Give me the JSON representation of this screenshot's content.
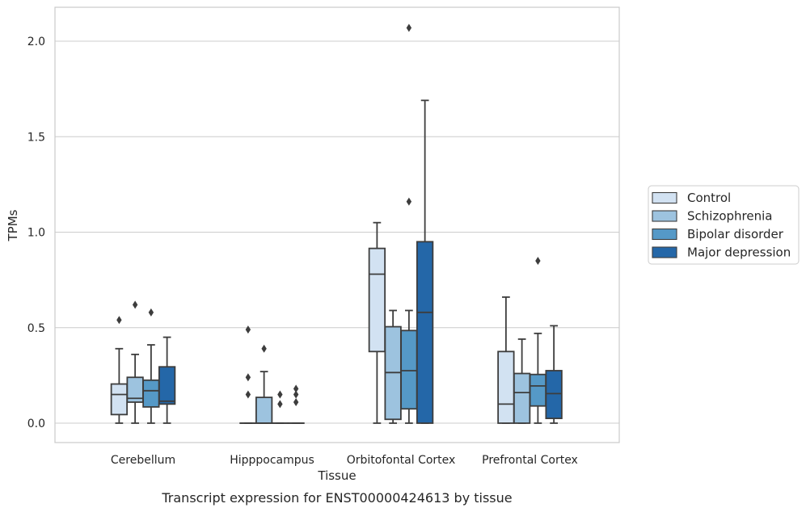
{
  "caption": "Transcript expression for ENST00000424613 by tissue",
  "chart_data": {
    "type": "box",
    "xlabel": "Tissue",
    "ylabel": "TPMs",
    "ylim": [
      -0.1,
      2.18
    ],
    "yticks": [
      0.0,
      0.5,
      1.0,
      1.5,
      2.0
    ],
    "ytick_labels": [
      "0.0",
      "0.5",
      "1.0",
      "1.5",
      "2.0"
    ],
    "grid": "horizontal",
    "legend_position": "right",
    "categories": [
      "Cerebellum",
      "Hipppocampus",
      "Orbitofontal Cortex",
      "Prefrontal Cortex"
    ],
    "series": [
      {
        "name": "Control",
        "color": "#d2e2f2",
        "boxes": [
          {
            "whislo": 0.0,
            "q1": 0.045,
            "med": 0.15,
            "q3": 0.205,
            "whishi": 0.39,
            "fliers": [
              0.54
            ]
          },
          {
            "whislo": 0.0,
            "q1": 0.0,
            "med": 0.0,
            "q3": 0.0,
            "whishi": 0.0,
            "fliers": [
              0.15,
              0.24,
              0.49
            ]
          },
          {
            "whislo": 0.0,
            "q1": 0.375,
            "med": 0.78,
            "q3": 0.915,
            "whishi": 1.05,
            "fliers": []
          },
          {
            "whislo": 0.0,
            "q1": 0.0,
            "med": 0.1,
            "q3": 0.375,
            "whishi": 0.66,
            "fliers": []
          }
        ]
      },
      {
        "name": "Schizophrenia",
        "color": "#9dc3df",
        "boxes": [
          {
            "whislo": 0.0,
            "q1": 0.11,
            "med": 0.13,
            "q3": 0.24,
            "whishi": 0.36,
            "fliers": [
              0.62
            ]
          },
          {
            "whislo": 0.0,
            "q1": 0.0,
            "med": 0.0,
            "q3": 0.135,
            "whishi": 0.27,
            "fliers": [
              0.39
            ]
          },
          {
            "whislo": 0.0,
            "q1": 0.02,
            "med": 0.265,
            "q3": 0.505,
            "whishi": 0.59,
            "fliers": []
          },
          {
            "whislo": 0.0,
            "q1": 0.0,
            "med": 0.16,
            "q3": 0.26,
            "whishi": 0.44,
            "fliers": []
          }
        ]
      },
      {
        "name": "Bipolar disorder",
        "color": "#5599c7",
        "boxes": [
          {
            "whislo": 0.0,
            "q1": 0.085,
            "med": 0.17,
            "q3": 0.225,
            "whishi": 0.41,
            "fliers": [
              0.58
            ]
          },
          {
            "whislo": 0.0,
            "q1": 0.0,
            "med": 0.0,
            "q3": 0.0,
            "whishi": 0.0,
            "fliers": [
              0.1,
              0.15
            ]
          },
          {
            "whislo": 0.0,
            "q1": 0.075,
            "med": 0.275,
            "q3": 0.485,
            "whishi": 0.59,
            "fliers": [
              1.16,
              2.07
            ]
          },
          {
            "whislo": 0.0,
            "q1": 0.09,
            "med": 0.195,
            "q3": 0.255,
            "whishi": 0.47,
            "fliers": [
              0.85
            ]
          }
        ]
      },
      {
        "name": "Major depression",
        "color": "#2467a8",
        "boxes": [
          {
            "whislo": 0.0,
            "q1": 0.1,
            "med": 0.115,
            "q3": 0.295,
            "whishi": 0.45,
            "fliers": []
          },
          {
            "whislo": 0.0,
            "q1": 0.0,
            "med": 0.0,
            "q3": 0.0,
            "whishi": 0.0,
            "fliers": [
              0.11,
              0.15,
              0.18
            ]
          },
          {
            "whislo": 0.0,
            "q1": 0.0,
            "med": 0.58,
            "q3": 0.95,
            "whishi": 1.69,
            "fliers": []
          },
          {
            "whislo": 0.0,
            "q1": 0.025,
            "med": 0.155,
            "q3": 0.275,
            "whishi": 0.51,
            "fliers": []
          }
        ]
      }
    ]
  }
}
